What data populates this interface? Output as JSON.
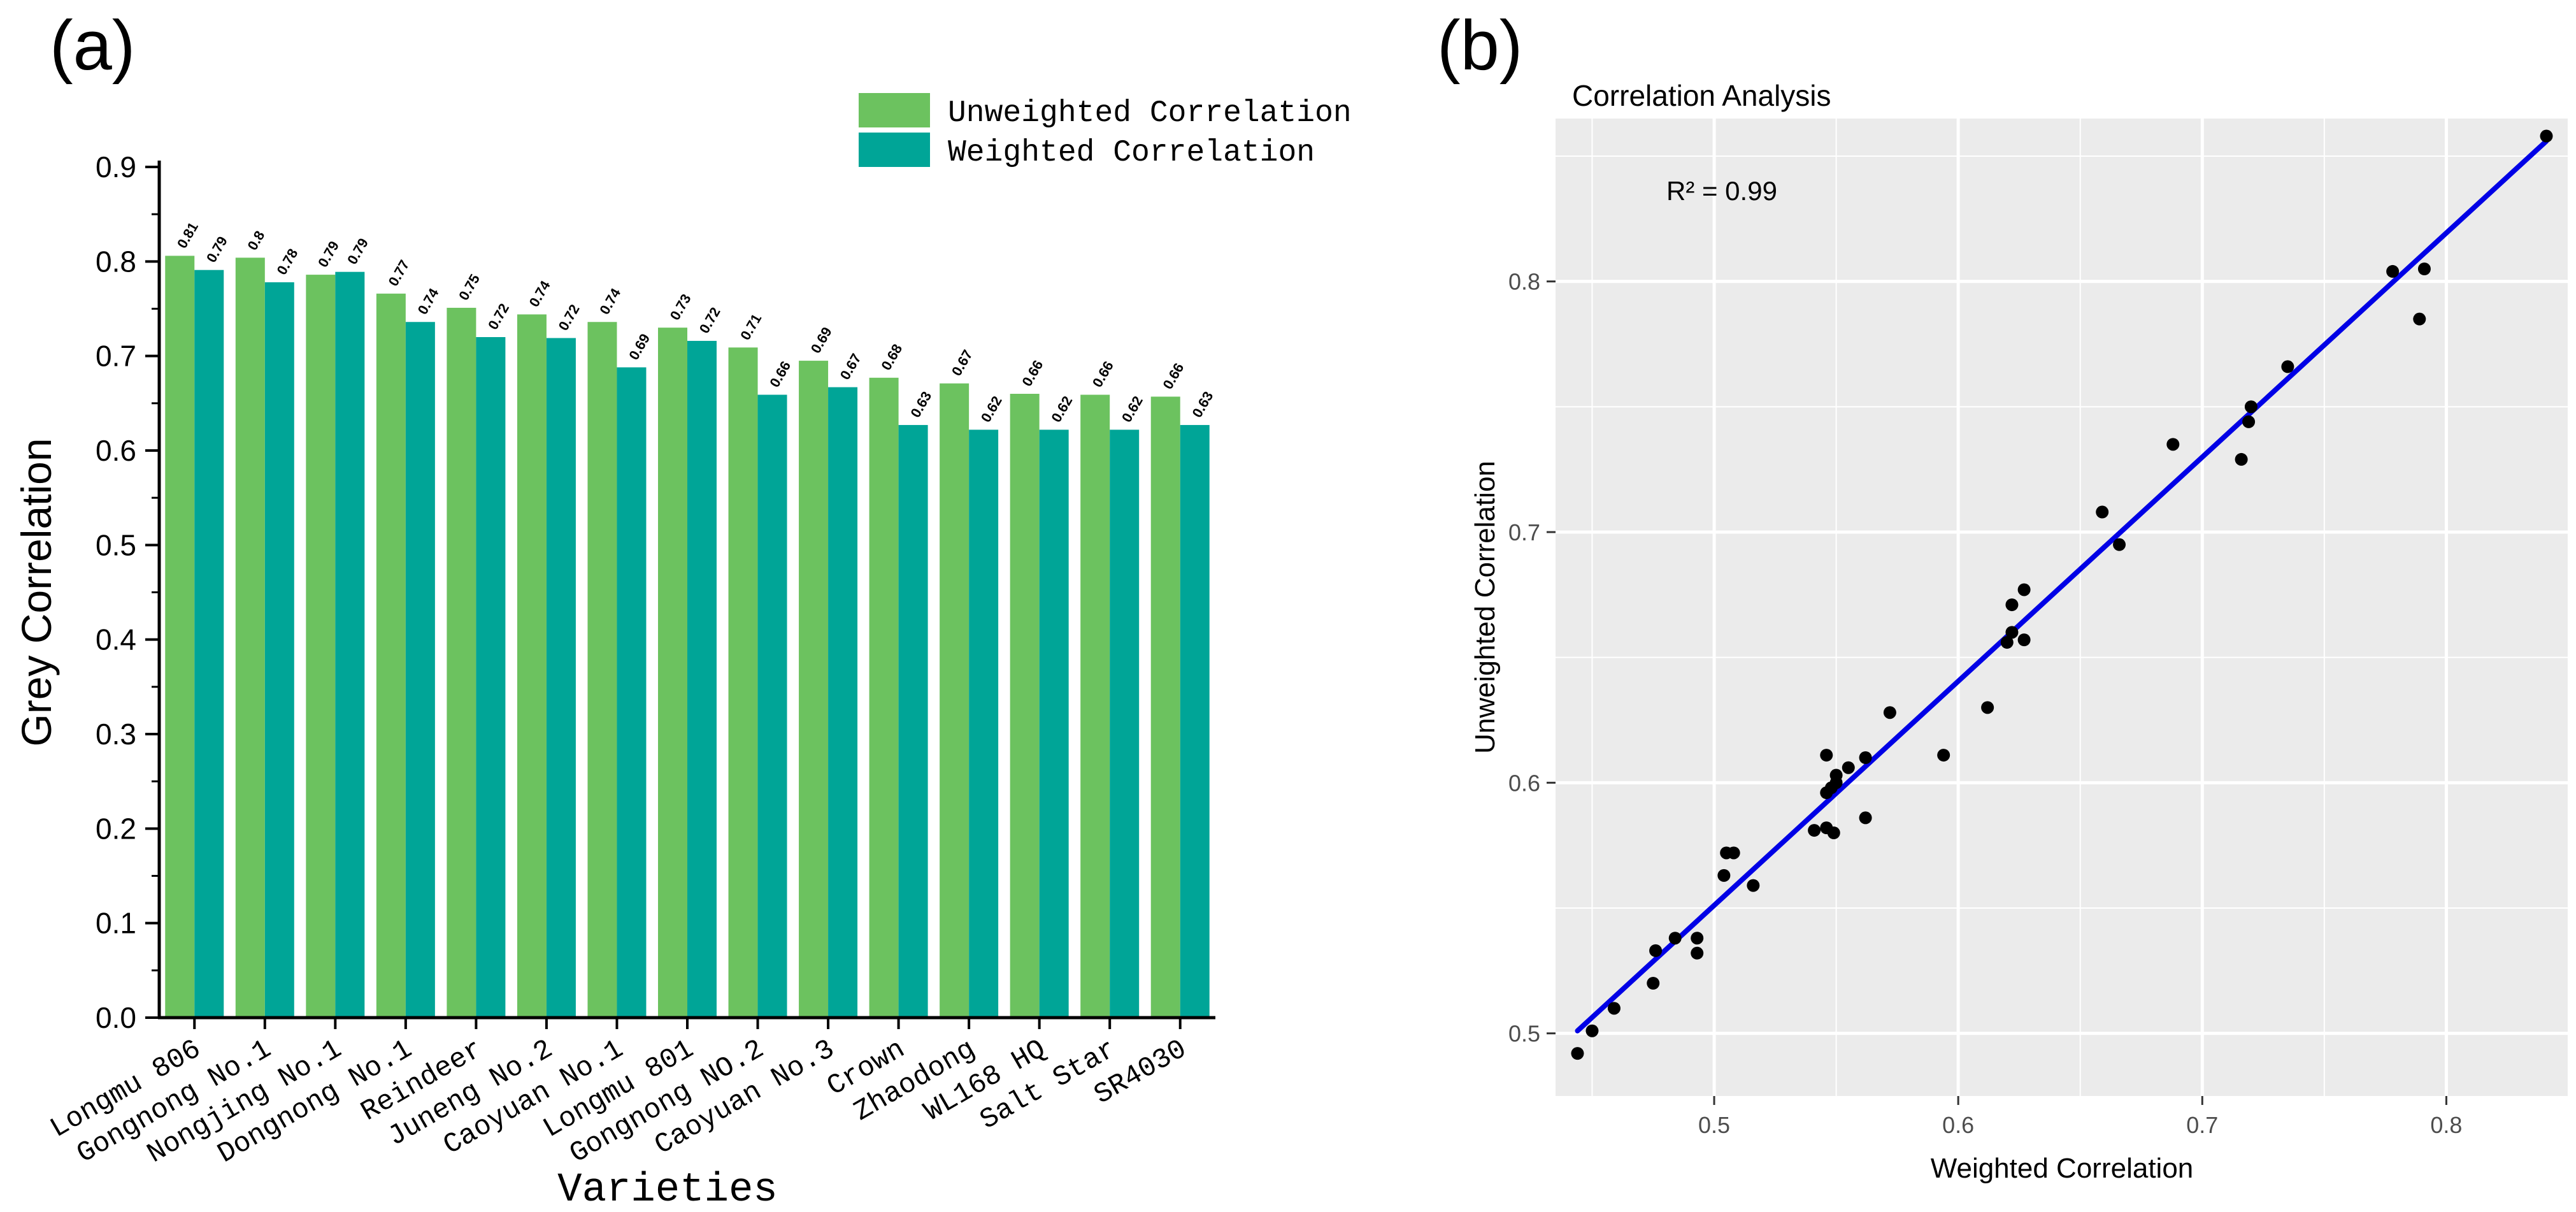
{
  "figure": {
    "panel_a_label": "(a)",
    "panel_b_label": "(b)"
  },
  "colors": {
    "unweighted": "#6cc25f",
    "weighted": "#00a597",
    "fit_line": "#0000e6",
    "point": "#000000",
    "panel_bg": "#ebebeb"
  },
  "chart_data": [
    {
      "type": "bar",
      "title": "",
      "xlabel": "Varieties",
      "ylabel": "Grey Correlation",
      "ylim": [
        0,
        0.9
      ],
      "yticks": [
        "0.0",
        "0.1",
        "0.2",
        "0.3",
        "0.4",
        "0.5",
        "0.6",
        "0.7",
        "0.8",
        "0.9"
      ],
      "legend_position": "top-right",
      "categories": [
        "Longmu 806",
        "Gongnong No.1",
        "Nongjing No.1",
        "Dongnong No.1",
        "Reindeer",
        "Juneng No.2",
        "Caoyuan No.1",
        "Longmu 801",
        "Gongnong NO.2",
        "Caoyuan No.3",
        "Crown",
        "Zhaodong",
        "WL168 HQ",
        "Salt Star",
        "SR4030"
      ],
      "series": [
        {
          "name": "Unweighted Correlation",
          "values": [
            0.806,
            0.804,
            0.786,
            0.766,
            0.751,
            0.744,
            0.736,
            0.73,
            0.709,
            0.695,
            0.677,
            0.671,
            0.66,
            0.659,
            0.657
          ],
          "labels": [
            "0.81",
            "0.8",
            "0.79",
            "0.77",
            "0.75",
            "0.74",
            "0.74",
            "0.73",
            "0.71",
            "0.69",
            "0.68",
            "0.67",
            "0.66",
            "0.66",
            "0.66"
          ]
        },
        {
          "name": "Weighted Correlation",
          "values": [
            0.791,
            0.778,
            0.789,
            0.736,
            0.72,
            0.719,
            0.688,
            0.716,
            0.659,
            0.667,
            0.627,
            0.622,
            0.622,
            0.622,
            0.627
          ],
          "labels": [
            "0.79",
            "0.78",
            "0.79",
            "0.74",
            "0.72",
            "0.72",
            "0.69",
            "0.72",
            "0.66",
            "0.67",
            "0.63",
            "0.62",
            "0.62",
            "0.62",
            "0.63"
          ]
        }
      ]
    },
    {
      "type": "scatter",
      "title": "Correlation Analysis",
      "xlabel": "Weighted Correlation",
      "ylabel": "Unweighted Correlation",
      "xlim": [
        0.435,
        0.85
      ],
      "ylim": [
        0.475,
        0.865
      ],
      "xticks": [
        "0.5",
        "0.6",
        "0.7",
        "0.8"
      ],
      "yticks": [
        "0.5",
        "0.6",
        "0.7",
        "0.8"
      ],
      "grid": true,
      "annotation": "R² = 0.99",
      "fit_line": {
        "from": [
          0.444,
          0.501
        ],
        "to": [
          0.841,
          0.856
        ]
      },
      "points": [
        [
          0.841,
          0.858
        ],
        [
          0.791,
          0.805
        ],
        [
          0.778,
          0.804
        ],
        [
          0.789,
          0.785
        ],
        [
          0.735,
          0.766
        ],
        [
          0.72,
          0.75
        ],
        [
          0.719,
          0.744
        ],
        [
          0.716,
          0.729
        ],
        [
          0.688,
          0.735
        ],
        [
          0.666,
          0.695
        ],
        [
          0.659,
          0.708
        ],
        [
          0.627,
          0.677
        ],
        [
          0.622,
          0.671
        ],
        [
          0.627,
          0.657
        ],
        [
          0.622,
          0.66
        ],
        [
          0.62,
          0.656
        ],
        [
          0.612,
          0.63
        ],
        [
          0.594,
          0.611
        ],
        [
          0.572,
          0.628
        ],
        [
          0.562,
          0.61
        ],
        [
          0.555,
          0.606
        ],
        [
          0.55,
          0.603
        ],
        [
          0.546,
          0.611
        ],
        [
          0.548,
          0.598
        ],
        [
          0.55,
          0.6
        ],
        [
          0.546,
          0.596
        ],
        [
          0.562,
          0.586
        ],
        [
          0.546,
          0.582
        ],
        [
          0.541,
          0.581
        ],
        [
          0.549,
          0.58
        ],
        [
          0.508,
          0.572
        ],
        [
          0.505,
          0.572
        ],
        [
          0.504,
          0.563
        ],
        [
          0.516,
          0.559
        ],
        [
          0.493,
          0.538
        ],
        [
          0.484,
          0.538
        ],
        [
          0.476,
          0.533
        ],
        [
          0.493,
          0.532
        ],
        [
          0.475,
          0.52
        ],
        [
          0.459,
          0.51
        ],
        [
          0.45,
          0.501
        ],
        [
          0.444,
          0.492
        ]
      ]
    }
  ]
}
